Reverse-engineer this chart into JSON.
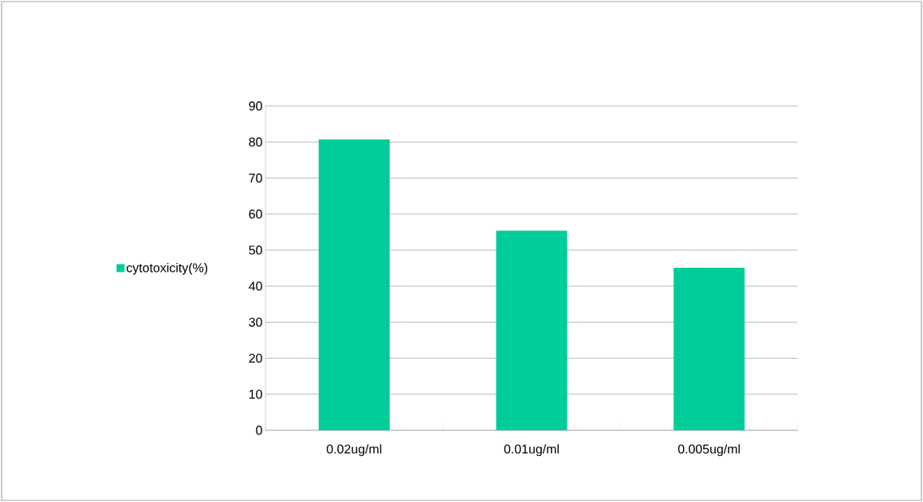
{
  "chart_data": {
    "type": "bar",
    "categories": [
      "0.02ug/ml",
      "0.01ug/ml",
      "0.005ug/ml"
    ],
    "series": [
      {
        "name": "cytotoxicity(%)",
        "color": "#00cc99",
        "values": [
          80.7,
          55.4,
          45.1
        ]
      }
    ],
    "ylim": [
      0,
      90
    ],
    "yticks": [
      0,
      10,
      20,
      30,
      40,
      50,
      60,
      70,
      80,
      90
    ],
    "grid": "y",
    "legend": "left"
  }
}
